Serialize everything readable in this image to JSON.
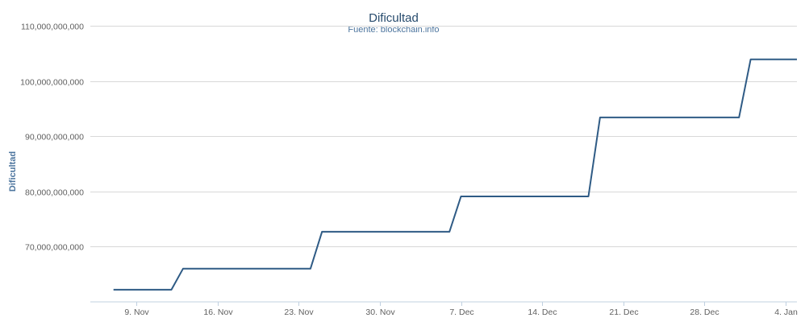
{
  "chart_data": {
    "type": "line",
    "title": "Dificultad",
    "subtitle": "Fuente: blockchain.info",
    "ylabel": "Dificultad",
    "xlabel": "",
    "ylim": [
      60000000000,
      110000000000
    ],
    "xlim": [
      "2014-11-05",
      "2015-01-05"
    ],
    "y_ticks": [
      70000000000,
      80000000000,
      90000000000,
      100000000000,
      110000000000
    ],
    "y_tick_labels": [
      "70,000,000,000",
      "80,000,000,000",
      "90,000,000,000",
      "100,000,000,000",
      "110,000,000,000"
    ],
    "x_ticks": [
      "2014-11-09",
      "2014-11-16",
      "2014-11-23",
      "2014-11-30",
      "2014-12-07",
      "2014-12-14",
      "2014-12-21",
      "2014-12-28",
      "2015-01-04"
    ],
    "x_tick_labels": [
      "9. Nov",
      "16. Nov",
      "23. Nov",
      "30. Nov",
      "7. Dec",
      "14. Dec",
      "21. Dec",
      "28. Dec",
      "4. Jan"
    ],
    "grid": true,
    "legend": false,
    "series": [
      {
        "color": "#2f5b85",
        "x": [
          "2014-11-07",
          "2014-11-12",
          "2014-11-13",
          "2014-11-24",
          "2014-11-25",
          "2014-12-06",
          "2014-12-07",
          "2014-12-18",
          "2014-12-19",
          "2014-12-31",
          "2015-01-01",
          "2015-01-05"
        ],
        "y": [
          62200000000,
          62200000000,
          66000000000,
          66000000000,
          72700000000,
          72700000000,
          79100000000,
          79100000000,
          93400000000,
          93400000000,
          103900000000,
          103900000000
        ]
      }
    ]
  }
}
